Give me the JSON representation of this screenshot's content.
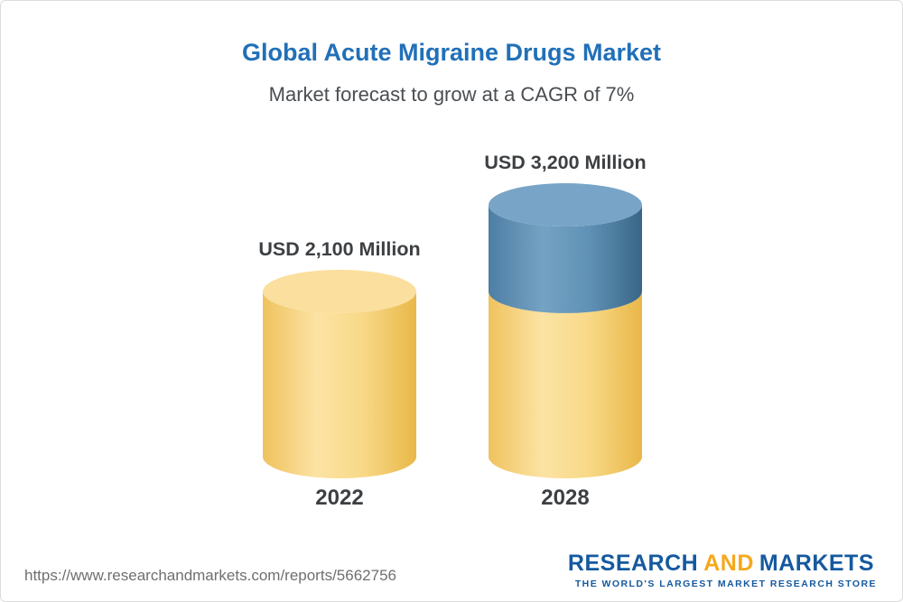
{
  "header": {
    "title": "Global Acute Migraine Drugs Market",
    "subtitle": "Market forecast to grow at a CAGR of 7%"
  },
  "chart_data": {
    "type": "bar",
    "variant": "3d-cylinder",
    "title": "Global Acute Migraine Drugs Market",
    "subtitle": "Market forecast to grow at a CAGR of 7%",
    "categories": [
      "2022",
      "2028"
    ],
    "values": [
      2100,
      3200
    ],
    "value_labels": [
      "USD 2,100 Million",
      "USD 3,200 Million"
    ],
    "base_value": 2100,
    "ylim": [
      0,
      3200
    ],
    "grid": false,
    "legend": false,
    "colors": {
      "base_segment": "#f5c75f",
      "growth_segment": "#4e80a6",
      "title_blue": "#2170b8",
      "label_text": "#3d4043"
    }
  },
  "footer": {
    "source_url": "https://www.researchandmarkets.com/reports/5662756",
    "logo": {
      "part1": "RESEARCH",
      "part2": "AND",
      "part3": "MARKETS",
      "tagline": "THE WORLD'S LARGEST MARKET RESEARCH STORE"
    }
  }
}
